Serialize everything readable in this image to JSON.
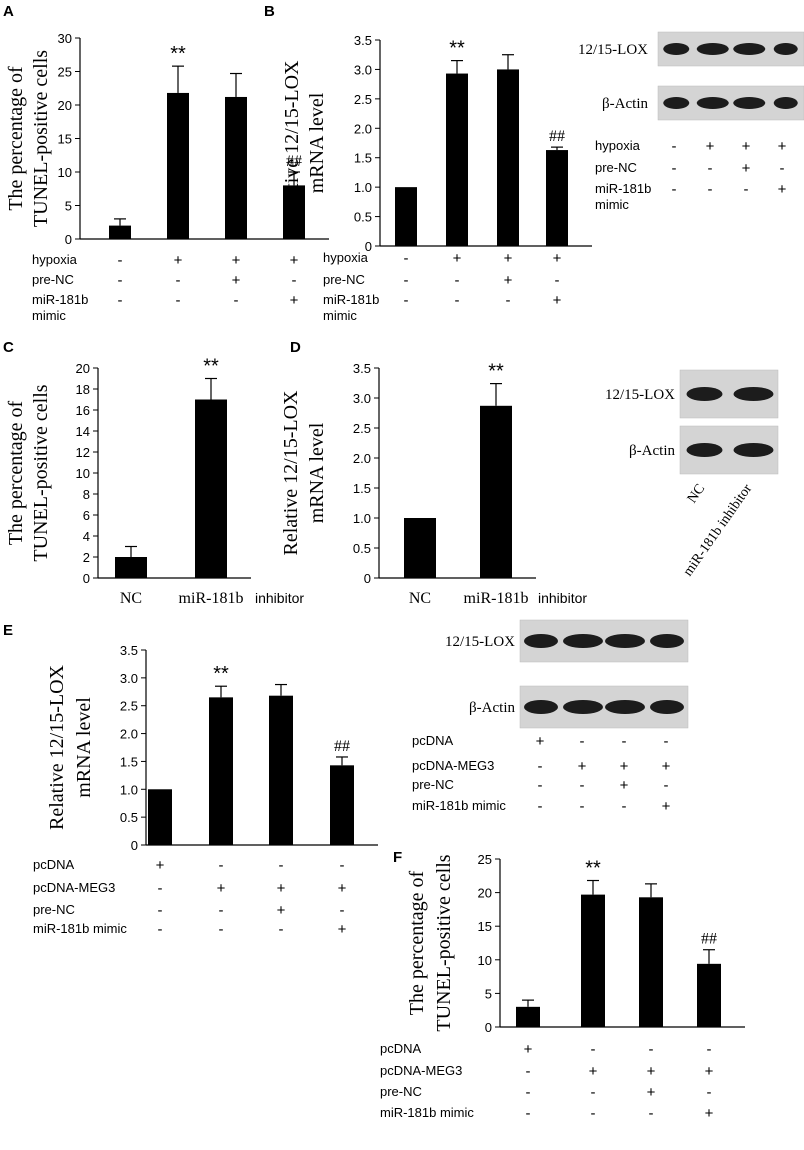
{
  "panels": {
    "A": {
      "letter": "A"
    },
    "B": {
      "letter": "B"
    },
    "C": {
      "letter": "C"
    },
    "D": {
      "letter": "D"
    },
    "E": {
      "letter": "E"
    },
    "F": {
      "letter": "F"
    }
  },
  "chart_data": [
    {
      "id": "A",
      "type": "bar",
      "ylabel_lines": [
        "The percentage of",
        "TUNEL-positive cells"
      ],
      "ylim": [
        0,
        30
      ],
      "yticks": [
        "0",
        "5",
        "10",
        "15",
        "20",
        "25",
        "30"
      ],
      "values": [
        2,
        21.8,
        21.2,
        8
      ],
      "errors": [
        1,
        4,
        3.5,
        2
      ],
      "annotations": [
        "",
        "**",
        "",
        "##"
      ],
      "conditions": [
        {
          "label": "hypoxia",
          "signs": [
            "-",
            "+",
            "+",
            "+"
          ]
        },
        {
          "label": "pre-NC",
          "signs": [
            "-",
            "-",
            "+",
            "-"
          ]
        },
        {
          "label": "miR-181b\nmimic",
          "signs": [
            "-",
            "-",
            "-",
            "+"
          ]
        }
      ]
    },
    {
      "id": "B",
      "type": "bar",
      "ylabel_lines": [
        "Relative 12/15-LOX",
        "mRNA level"
      ],
      "ylim": [
        0,
        3.5
      ],
      "yticks": [
        "0",
        "0.5",
        "1.0",
        "1.5",
        "2.0",
        "2.5",
        "3.0",
        "3.5"
      ],
      "values": [
        1,
        2.93,
        3.0,
        1.63
      ],
      "errors": [
        0,
        0.22,
        0.25,
        0.05
      ],
      "annotations": [
        "",
        "**",
        "",
        "##"
      ],
      "conditions": [
        {
          "label": "hypoxia",
          "signs": [
            "-",
            "+",
            "+",
            "+"
          ]
        },
        {
          "label": "pre-NC",
          "signs": [
            "-",
            "-",
            "+",
            "-"
          ]
        },
        {
          "label": "miR-181b\nmimic",
          "signs": [
            "-",
            "-",
            "-",
            "+"
          ]
        }
      ]
    },
    {
      "id": "C",
      "type": "bar",
      "ylabel_lines": [
        "The percentage of",
        "TUNEL-positive cells"
      ],
      "ylim": [
        0,
        20
      ],
      "yticks": [
        "0",
        "2",
        "4",
        "6",
        "8",
        "10",
        "12",
        "14",
        "16",
        "18",
        "20"
      ],
      "categories": [
        "NC",
        "miR-181b"
      ],
      "category_suffix": "inhibitor",
      "values": [
        2,
        17
      ],
      "errors": [
        1,
        2
      ],
      "annotations": [
        "",
        "**"
      ]
    },
    {
      "id": "D",
      "type": "bar",
      "ylabel_lines": [
        "Relative 12/15-LOX",
        "mRNA level"
      ],
      "ylim": [
        0,
        3.5
      ],
      "yticks": [
        "0",
        "0.5",
        "1.0",
        "1.5",
        "2.0",
        "2.5",
        "3.0",
        "3.5"
      ],
      "categories": [
        "NC",
        "miR-181b"
      ],
      "category_suffix": "inhibitor",
      "values": [
        1,
        2.87
      ],
      "errors": [
        0,
        0.37
      ],
      "annotations": [
        "",
        "**"
      ]
    },
    {
      "id": "E",
      "type": "bar",
      "ylabel_lines": [
        "Relative 12/15-LOX",
        "mRNA level"
      ],
      "ylim": [
        0,
        3.5
      ],
      "yticks": [
        "0",
        "0.5",
        "1.0",
        "1.5",
        "2.0",
        "2.5",
        "3.0",
        "3.5"
      ],
      "values": [
        1,
        2.65,
        2.68,
        1.43
      ],
      "errors": [
        0,
        0.2,
        0.2,
        0.15
      ],
      "annotations": [
        "",
        "**",
        "",
        "##"
      ],
      "conditions": [
        {
          "label": "pcDNA",
          "signs": [
            "+",
            "-",
            "-",
            "-"
          ]
        },
        {
          "label": "pcDNA-MEG3",
          "signs": [
            "-",
            "+",
            "+",
            "+"
          ]
        },
        {
          "label": "pre-NC",
          "signs": [
            "-",
            "-",
            "+",
            "-"
          ]
        },
        {
          "label": "miR-181b mimic",
          "signs": [
            "-",
            "-",
            "-",
            "+"
          ]
        }
      ]
    },
    {
      "id": "F",
      "type": "bar",
      "ylabel_lines": [
        "The percentage of",
        "TUNEL-positive cells"
      ],
      "ylim": [
        0,
        25
      ],
      "yticks": [
        "0",
        "5",
        "10",
        "15",
        "20",
        "25"
      ],
      "values": [
        3,
        19.7,
        19.3,
        9.4
      ],
      "errors": [
        1,
        2.1,
        2,
        2.1
      ],
      "annotations": [
        "",
        "**",
        "",
        "##"
      ],
      "conditions": [
        {
          "label": "pcDNA",
          "signs": [
            "+",
            "-",
            "-",
            "-"
          ]
        },
        {
          "label": "pcDNA-MEG3",
          "signs": [
            "-",
            "+",
            "+",
            "+"
          ]
        },
        {
          "label": "pre-NC",
          "signs": [
            "-",
            "-",
            "+",
            "-"
          ]
        },
        {
          "label": "miR-181b mimic",
          "signs": [
            "-",
            "-",
            "-",
            "+"
          ]
        }
      ]
    }
  ],
  "blots": {
    "B": {
      "rows": [
        "12/15-LOX",
        "β-Actin"
      ],
      "lane_count": 4,
      "conditions": [
        {
          "label": "hypoxia",
          "signs": [
            "-",
            "+",
            "+",
            "+"
          ]
        },
        {
          "label": "pre-NC",
          "signs": [
            "-",
            "-",
            "+",
            "-"
          ]
        },
        {
          "label": "miR-181b\nmimic",
          "signs": [
            "-",
            "-",
            "-",
            "+"
          ]
        }
      ]
    },
    "D": {
      "rows": [
        "12/15-LOX",
        "β-Actin"
      ],
      "lane_count": 2,
      "lane_labels": [
        "NC",
        "miR-181b inhibitor"
      ]
    },
    "E": {
      "rows": [
        "12/15-LOX",
        "β-Actin"
      ],
      "lane_count": 4,
      "conditions": [
        {
          "label": "pcDNA",
          "signs": [
            "+",
            "-",
            "-",
            "-"
          ]
        },
        {
          "label": "pcDNA-MEG3",
          "signs": [
            "-",
            "+",
            "+",
            "+"
          ]
        },
        {
          "label": "pre-NC",
          "signs": [
            "-",
            "-",
            "+",
            "-"
          ]
        },
        {
          "label": "miR-181b mimic",
          "signs": [
            "-",
            "-",
            "-",
            "+"
          ]
        }
      ]
    }
  }
}
